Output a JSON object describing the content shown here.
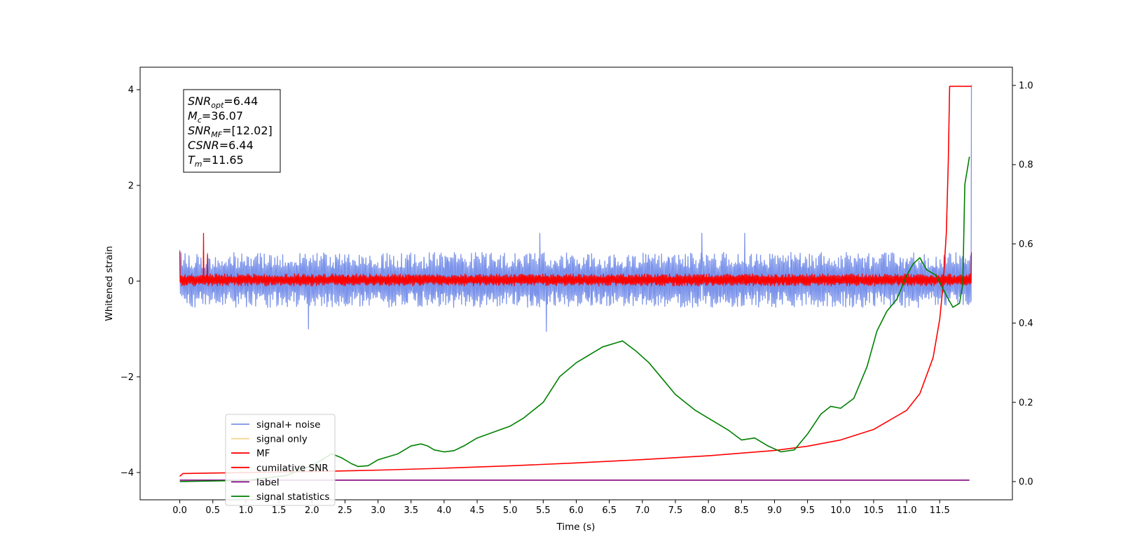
{
  "chart_data": {
    "type": "line",
    "title": "",
    "xlabel": "Time (s)",
    "ylabel": "Whitened strain",
    "y2label": "",
    "xlim": [
      -0.6,
      12.6
    ],
    "ylim": [
      -4.57,
      4.47
    ],
    "y2lim": [
      -0.046,
      1.046
    ],
    "grid": false,
    "legend_position": "lower-left",
    "x_ticks": [
      "0.0",
      "0.5",
      "1.0",
      "1.5",
      "2.0",
      "2.5",
      "3.0",
      "3.5",
      "4.0",
      "4.5",
      "5.0",
      "5.5",
      "6.0",
      "6.5",
      "7.0",
      "7.5",
      "8.0",
      "8.5",
      "9.0",
      "9.5",
      "10.0",
      "10.5",
      "11.0",
      "11.5"
    ],
    "y_ticks": [
      "4",
      "2",
      "0",
      "−2",
      "−4"
    ],
    "y_tick_values": [
      4,
      2,
      0,
      -2,
      -4
    ],
    "y2_ticks": [
      "1.0",
      "0.8",
      "0.6",
      "0.4",
      "0.2",
      "0.0"
    ],
    "y2_tick_values": [
      1.0,
      0.8,
      0.6,
      0.4,
      0.2,
      0.0
    ],
    "annotation": {
      "lines": [
        {
          "base": "SNR",
          "sub": "opt",
          "value": "=6.44"
        },
        {
          "base": "M",
          "sub": "c",
          "value": "=36.07"
        },
        {
          "base": "SNR",
          "sub": "MF",
          "value": "=[12.02]"
        },
        {
          "base": "CSNR",
          "sub": "",
          "value": "=6.44"
        },
        {
          "base": "T",
          "sub": "m",
          "value": "=11.65"
        }
      ]
    },
    "legend": [
      {
        "name": "signal+ noise",
        "color": "#7b93ea"
      },
      {
        "name": "signal only",
        "color": "#f5d58a"
      },
      {
        "name": "MF",
        "color": "#ff0000"
      },
      {
        "name": "cumilative SNR",
        "color": "#ff0000"
      },
      {
        "name": "label",
        "color": "#800080"
      },
      {
        "name": "signal statistics",
        "color": "#008000"
      }
    ],
    "series": [
      {
        "name": "signal+ noise",
        "axis": "left",
        "color": "#7b93ea",
        "style": "noise band",
        "x_range": [
          0.0,
          11.98
        ],
        "envelope": [
          -0.55,
          0.6
        ],
        "spikes": [
          [
            0.0,
            -4.1
          ],
          [
            0.0,
            0.65
          ],
          [
            11.98,
            4.1
          ],
          [
            5.45,
            1.0
          ],
          [
            7.9,
            1.0
          ],
          [
            1.95,
            -1.0
          ],
          [
            5.55,
            -1.05
          ],
          [
            8.55,
            1.0
          ]
        ]
      },
      {
        "name": "MF",
        "axis": "left",
        "color": "#ff0000",
        "style": "noise band",
        "x_range": [
          0.0,
          11.98
        ],
        "envelope": [
          -0.1,
          0.15
        ],
        "spikes": [
          [
            0.0,
            0.62
          ],
          [
            0.36,
            1.0
          ],
          [
            0.42,
            0.55
          ],
          [
            11.98,
            0.6
          ]
        ]
      },
      {
        "name": "cumilative SNR",
        "axis": "left",
        "color": "#ff0000",
        "x": [
          0.0,
          0.05,
          1.0,
          2.0,
          3.0,
          4.0,
          5.0,
          6.0,
          7.0,
          8.0,
          9.0,
          9.5,
          10.0,
          10.5,
          11.0,
          11.2,
          11.4,
          11.5,
          11.55,
          11.6,
          11.63,
          11.65,
          11.7,
          11.98
        ],
        "y": [
          -4.08,
          -4.02,
          -4.0,
          -3.98,
          -3.95,
          -3.91,
          -3.86,
          -3.8,
          -3.73,
          -3.65,
          -3.54,
          -3.45,
          -3.32,
          -3.1,
          -2.7,
          -2.35,
          -1.6,
          -0.8,
          -0.1,
          1.0,
          2.5,
          4.07,
          4.07,
          4.07
        ]
      },
      {
        "name": "label",
        "axis": "left",
        "color": "#800080",
        "x": [
          0.0,
          11.95
        ],
        "y": [
          -4.16,
          -4.16
        ]
      },
      {
        "name": "signal statistics",
        "axis": "right",
        "color": "#008000",
        "x": [
          0.0,
          1.0,
          1.6,
          2.0,
          2.3,
          2.45,
          2.6,
          2.7,
          2.85,
          3.0,
          3.3,
          3.5,
          3.65,
          3.75,
          3.85,
          4.0,
          4.15,
          4.3,
          4.5,
          4.75,
          5.0,
          5.2,
          5.5,
          5.75,
          6.0,
          6.2,
          6.4,
          6.6,
          6.7,
          6.9,
          7.1,
          7.3,
          7.5,
          7.8,
          8.0,
          8.3,
          8.5,
          8.7,
          8.9,
          9.1,
          9.3,
          9.5,
          9.7,
          9.85,
          10.0,
          10.2,
          10.4,
          10.55,
          10.7,
          10.85,
          11.0,
          11.1,
          11.2,
          11.3,
          11.45,
          11.6,
          11.7,
          11.8,
          11.85,
          11.88,
          11.95
        ],
        "y": [
          0.0,
          0.003,
          0.015,
          0.04,
          0.07,
          0.06,
          0.045,
          0.038,
          0.04,
          0.055,
          0.07,
          0.09,
          0.095,
          0.09,
          0.08,
          0.075,
          0.078,
          0.09,
          0.11,
          0.125,
          0.14,
          0.16,
          0.2,
          0.265,
          0.3,
          0.32,
          0.34,
          0.35,
          0.355,
          0.33,
          0.3,
          0.26,
          0.22,
          0.18,
          0.16,
          0.13,
          0.105,
          0.11,
          0.09,
          0.075,
          0.08,
          0.12,
          0.17,
          0.19,
          0.185,
          0.21,
          0.29,
          0.38,
          0.43,
          0.46,
          0.52,
          0.55,
          0.565,
          0.535,
          0.52,
          0.47,
          0.44,
          0.45,
          0.5,
          0.75,
          0.82
        ]
      }
    ]
  }
}
